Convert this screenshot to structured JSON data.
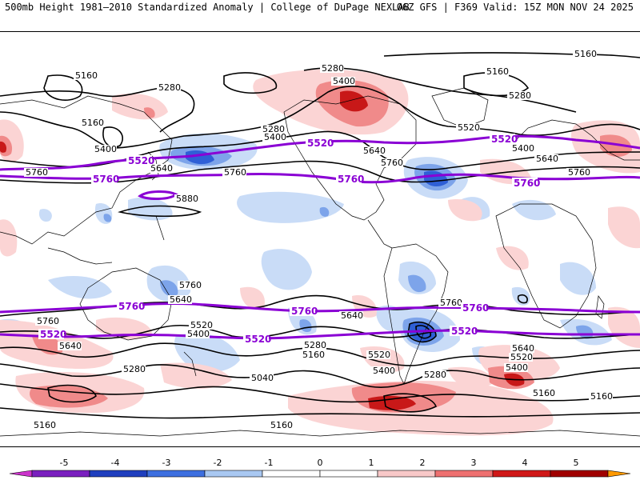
{
  "header": {
    "left": "500mb Height 1981–2010 Standardized Anomaly | College of DuPage NEXLAB",
    "right": "06Z GFS | F369 Valid: 15Z MON NOV 24 2025"
  },
  "contour_labels": {
    "c5160_a": "5160",
    "c5160_b": "5160",
    "c5160_c": "5160",
    "c5160_d": "5160",
    "c5160_e": "5160",
    "c5160_f": "5160",
    "c5160_g": "5160",
    "c5160_h": "5160",
    "c5160_i": "5160",
    "c5280_a": "5280",
    "c5280_b": "5280",
    "c5280_c": "5280",
    "c5280_d": "5280",
    "c5280_e": "5280",
    "c5280_f": "5280",
    "c5280_g": "5280",
    "c5400_a": "5400",
    "c5400_b": "5400",
    "c5400_c": "5400",
    "c5400_d": "5400",
    "c5400_e": "5400",
    "c5400_f": "5400",
    "c5400_g": "5400",
    "c5520_a": "5520",
    "c5520_b": "5520",
    "c5520_c": "5520",
    "c5520_d": "5520",
    "c5640_a": "5640",
    "c5640_b": "5640",
    "c5640_c": "5640",
    "c5640_d": "5640",
    "c5640_e": "5640",
    "c5640_f": "5640",
    "c5640_g": "5640",
    "c5760_a": "5760",
    "c5760_b": "5760",
    "c5760_c": "5760",
    "c5760_d": "5760",
    "c5760_e": "5760",
    "c5760_f": "5760",
    "c5880": "5880",
    "c5040": "5040"
  },
  "highlight_labels": {
    "n5520_a": "5520",
    "n5520_b": "5520",
    "n5520_c": "5520",
    "n5760_a": "5760",
    "n5760_b": "5760",
    "n5760_c": "5760",
    "s5760_a": "5760",
    "s5760_b": "5760",
    "s5760_c": "5760",
    "s5520_a": "5520",
    "s5520_b": "5520",
    "s5520_c": "5520"
  },
  "colorbar": {
    "ticks": [
      "-5",
      "-4",
      "-3",
      "-2",
      "-1",
      "0",
      "1",
      "2",
      "3",
      "4",
      "5"
    ],
    "colors": [
      "#cc33cc",
      "#7a1fbf",
      "#1f3fbf",
      "#3d6fe0",
      "#a9c8f2",
      "#ffffff",
      "#ffffff",
      "#f8c8c8",
      "#ee7070",
      "#d01818",
      "#a00000",
      "#ff9900"
    ]
  },
  "colors": {
    "highlight_contour": "#8a00d4",
    "neg_anomaly_light": "#c9dcf7",
    "neg_anomaly_mid": "#7da4ea",
    "neg_anomaly_dark": "#2f5fd6",
    "pos_anomaly_light": "#fbd4d4",
    "pos_anomaly_mid": "#f08a8a",
    "pos_anomaly_dark": "#c81818"
  }
}
